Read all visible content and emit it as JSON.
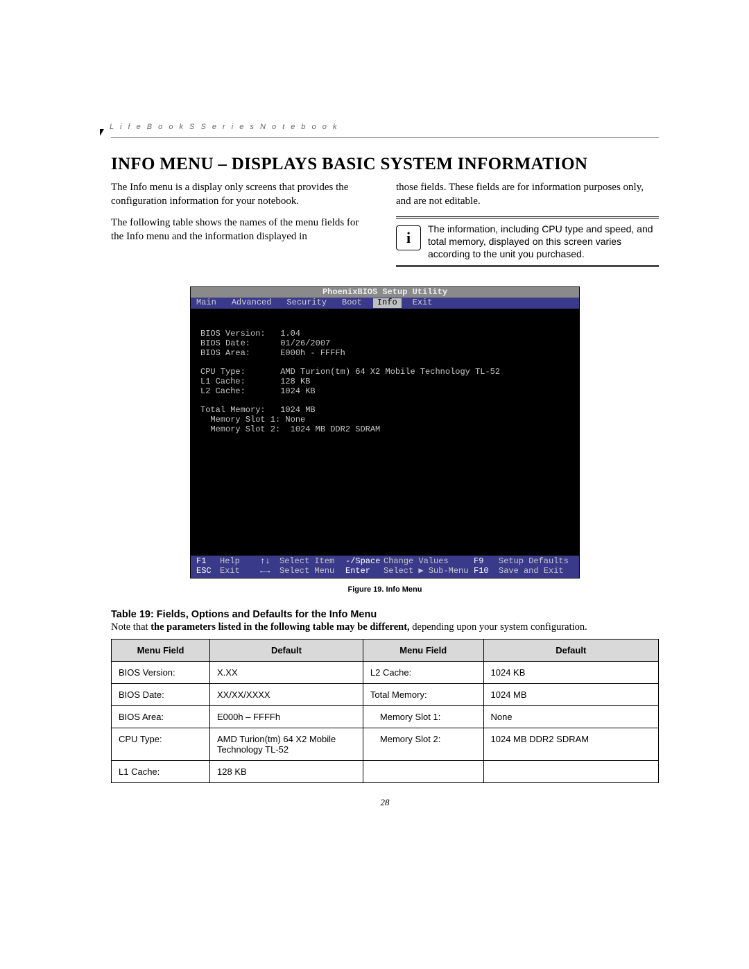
{
  "header": {
    "product_line": "L i f e B o o k   S   S e r i e s   N o t e b o o k"
  },
  "title": "INFO MENU – DISPLAYS BASIC SYSTEM INFORMATION",
  "body": {
    "p1": "The Info menu is a display only screens that provides the configuration information for your notebook.",
    "p2": "The following table shows the names of the menu fields for the Info menu and the information displayed in",
    "p3": "those fields. These fields are for information purposes only, and are not editable.",
    "note": "The information, including CPU type and speed, and total memory, displayed on this screen varies according to the unit you purchased."
  },
  "bios": {
    "title": "PhoenixBIOS Setup Utility",
    "menu": [
      "Main",
      "Advanced",
      "Security",
      "Boot",
      "Info",
      "Exit"
    ],
    "active_index": 4,
    "lines": [
      "",
      "BIOS Version:   1.04",
      "BIOS Date:      01/26/2007",
      "BIOS Area:      E000h - FFFFh",
      "",
      "CPU Type:       AMD Turion(tm) 64 X2 Mobile Technology TL-52",
      "L1 Cache:       128 KB",
      "L2 Cache:       1024 KB",
      "",
      "Total Memory:   1024 MB",
      "  Memory Slot 1: None",
      "  Memory Slot 2:  1024 MB DDR2 SDRAM"
    ],
    "help": {
      "f1": "F1",
      "help": "Help",
      "updown": "↑↓",
      "select_item": "Select Item",
      "minus_space": "-/Space",
      "change_values": "Change Values",
      "f9": "F9",
      "setup_defaults": "Setup Defaults",
      "esc": "ESC",
      "exit": "Exit",
      "leftright": "←→",
      "select_menu": "Select Menu",
      "enter": "Enter",
      "select_sub": "Select ▶ Sub-Menu",
      "f10": "F10",
      "save_exit": "Save and Exit"
    }
  },
  "figure_caption": "Figure 19.   Info Menu",
  "table": {
    "title": "Table 19: Fields, Options and Defaults for the Info Menu",
    "note_prefix": "Note that ",
    "note_bold": "the parameters listed in the following table may be different,",
    "note_suffix": " depending upon your system configuration.",
    "headers": [
      "Menu Field",
      "Default",
      "Menu Field",
      "Default"
    ],
    "rows": [
      {
        "a": "BIOS Version:",
        "av": "X.XX",
        "b": "L2 Cache:",
        "bv": "1024 KB",
        "ai": false,
        "bi": false
      },
      {
        "a": "BIOS Date:",
        "av": "XX/XX/XXXX",
        "b": "Total Memory:",
        "bv": "1024 MB",
        "ai": false,
        "bi": false
      },
      {
        "a": "BIOS Area:",
        "av": "E000h – FFFFh",
        "b": "Memory Slot 1:",
        "bv": "None",
        "ai": false,
        "bi": true
      },
      {
        "a": "CPU Type:",
        "av": "AMD Turion(tm) 64 X2 Mobile Technology TL-52",
        "b": "Memory Slot 2:",
        "bv": "1024 MB DDR2 SDRAM",
        "ai": false,
        "bi": true
      },
      {
        "a": "L1 Cache:",
        "av": "128 KB",
        "b": "",
        "bv": "",
        "ai": false,
        "bi": false
      }
    ]
  },
  "page_number": "28"
}
